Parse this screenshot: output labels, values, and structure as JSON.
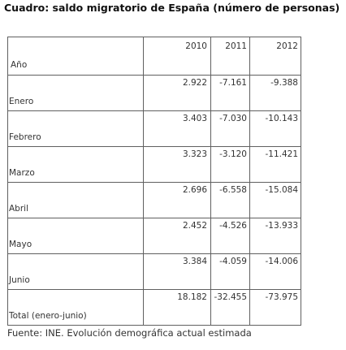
{
  "caption": "Cuadro: saldo migratorio de España (número de personas)",
  "table": {
    "header": {
      "label": "Año",
      "years": [
        "2010",
        "2011",
        "2012"
      ]
    },
    "rows": [
      {
        "label": "Enero",
        "values": [
          "2.922",
          "-7.161",
          "-9.388"
        ]
      },
      {
        "label": "Febrero",
        "values": [
          "3.403",
          "-7.030",
          "-10.143"
        ]
      },
      {
        "label": "Marzo",
        "values": [
          "3.323",
          "-3.120",
          "-11.421"
        ]
      },
      {
        "label": "Abril",
        "values": [
          "2.696",
          "-6.558",
          "-15.084"
        ]
      },
      {
        "label": "Mayo",
        "values": [
          "2.452",
          "-4.526",
          "-13.933"
        ]
      },
      {
        "label": "Junio",
        "values": [
          "3.384",
          "-4.059",
          "-14.006"
        ]
      },
      {
        "label": "Total (enero-junio)",
        "values": [
          "18.182",
          "-32.455",
          "-73.975"
        ]
      }
    ]
  },
  "source": "Fuente: INE. Evolución demográfica actual estimada"
}
